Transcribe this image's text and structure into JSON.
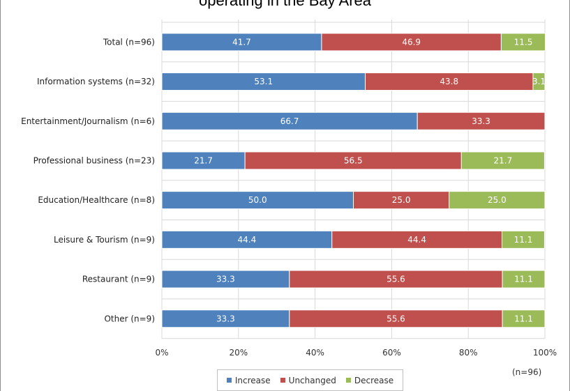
{
  "title": "operating in the Bay Area",
  "note": "(n=96)",
  "chart_data": {
    "type": "bar",
    "orientation": "horizontal",
    "stacked": true,
    "categories": [
      "Total (n=96)",
      "Information systems  (n=32)",
      "Entertainment/Journalism  (n=6)",
      "Professional business  (n=23)",
      "Education/Healthcare  (n=8)",
      "Leisure & Tourism (n=9)",
      "Restaurant (n=9)",
      "Other (n=9)"
    ],
    "series": [
      {
        "name": "Increase",
        "color": "#4f81bd",
        "values": [
          41.7,
          53.1,
          66.7,
          21.7,
          50.0,
          44.4,
          33.3,
          33.3
        ],
        "labels": [
          "41.7",
          "53.1",
          "66.7",
          "21.7",
          "50.0",
          "44.4",
          "33.3",
          "33.3"
        ]
      },
      {
        "name": "Unchanged",
        "color": "#c0504d",
        "values": [
          46.9,
          43.8,
          33.3,
          56.5,
          25.0,
          44.4,
          55.6,
          55.6
        ],
        "labels": [
          "46.9",
          "43.8",
          "33.3",
          "56.5",
          "25.0",
          "44.4",
          "55.6",
          "55.6"
        ]
      },
      {
        "name": "Decrease",
        "color": "#9bbb59",
        "values": [
          11.5,
          3.1,
          0,
          21.7,
          25.0,
          11.1,
          11.1,
          11.1
        ],
        "labels": [
          "11.5",
          "3.1",
          "",
          "21.7",
          "25.0",
          "11.1",
          "11.1",
          "11.1"
        ]
      }
    ],
    "xlim": [
      0,
      100
    ],
    "x_ticks": [
      "0%",
      "20%",
      "40%",
      "60%",
      "80%",
      "100%"
    ],
    "grid": true,
    "legend_position": "bottom"
  }
}
